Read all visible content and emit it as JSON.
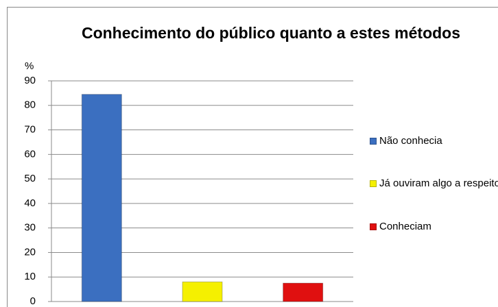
{
  "chart_data": {
    "type": "bar",
    "title": "Conhecimento do público quanto a estes métodos",
    "y_label": "%",
    "categories": [
      "Não conhecia",
      "Já ouviram algo a respeito",
      "Conheciam"
    ],
    "values": [
      84.5,
      8,
      7.5
    ],
    "colors": [
      "#3b6fc0",
      "#f5f000",
      "#e01010"
    ],
    "ylim": [
      0,
      90
    ],
    "yticks": [
      0,
      10,
      20,
      30,
      40,
      50,
      60,
      70,
      80,
      90
    ],
    "grid": true,
    "legend": "right"
  }
}
